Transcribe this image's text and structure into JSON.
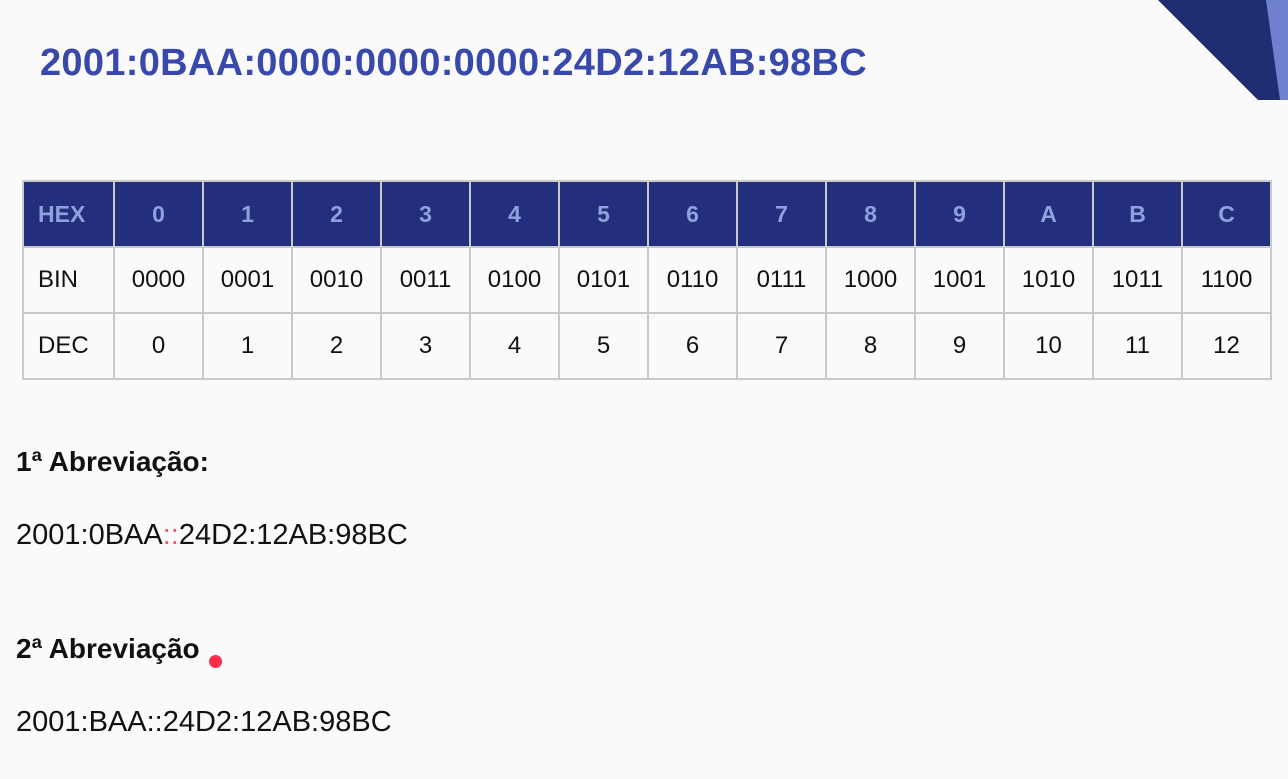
{
  "colors": {
    "title": "#3949ab",
    "header_bg": "#232f7d",
    "header_text": "#8fa0df",
    "highlight": "#e8596e",
    "laser": "#ff2b4a",
    "deco_dark": "#1f2d73",
    "deco_light": "#6f80cf"
  },
  "title": "2001:0BAA:0000:0000:0000:24D2:12AB:98BC",
  "table": {
    "header_label": "HEX",
    "hex": [
      "0",
      "1",
      "2",
      "3",
      "4",
      "5",
      "6",
      "7",
      "8",
      "9",
      "A",
      "B",
      "C"
    ],
    "rows": [
      {
        "label": "BIN",
        "values": [
          "0000",
          "0001",
          "0010",
          "0011",
          "0100",
          "0101",
          "0110",
          "0111",
          "1000",
          "1001",
          "1010",
          "1011",
          "1100"
        ]
      },
      {
        "label": "DEC",
        "values": [
          "0",
          "1",
          "2",
          "3",
          "4",
          "5",
          "6",
          "7",
          "8",
          "9",
          "10",
          "11",
          "12"
        ]
      }
    ]
  },
  "abbreviation1": {
    "heading": "1ª Abreviação:",
    "prefix": "2001:0BAA",
    "highlight": "::",
    "suffix": "24D2:12AB:98BC"
  },
  "abbreviation2": {
    "heading": "2ª Abreviação",
    "address": "2001:BAA::24D2:12AB:98BC"
  }
}
